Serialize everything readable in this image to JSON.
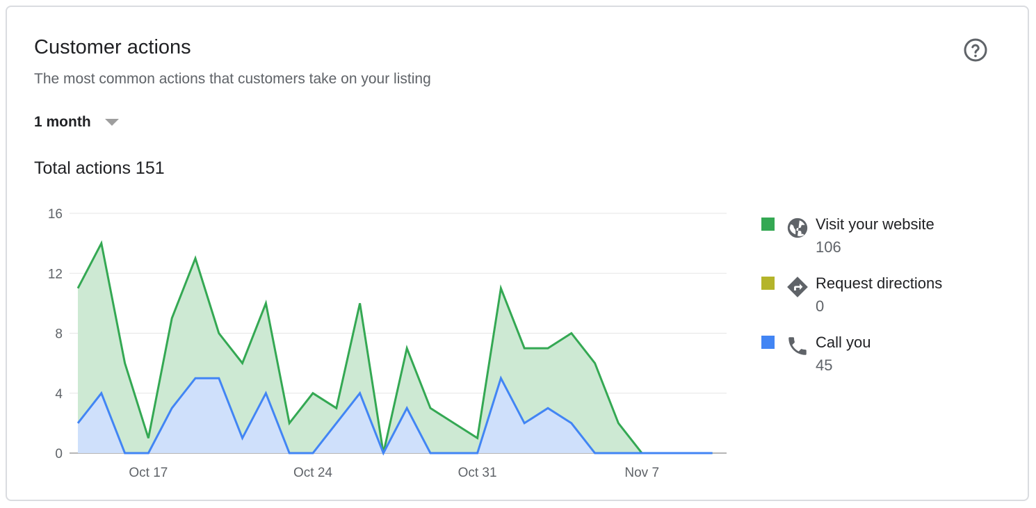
{
  "card": {
    "title": "Customer actions",
    "subtitle": "The most common actions that customers take on your listing",
    "help_icon": "help-circle-icon",
    "period": {
      "selected": "1 month",
      "icon": "caret-down-icon"
    },
    "total_label": "Total actions 151"
  },
  "colors": {
    "website": "#34a853",
    "website_fill": "#cde9d3",
    "directions": "#b4b42a",
    "call": "#4285f4",
    "call_fill": "#cfe0fb",
    "grid": "#e6e6e6",
    "axis": "#9e9e9e"
  },
  "legend": [
    {
      "label": "Visit your website",
      "value": "106",
      "icon": "globe-icon",
      "color_key": "website"
    },
    {
      "label": "Request directions",
      "value": "0",
      "icon": "directions-icon",
      "color_key": "directions"
    },
    {
      "label": "Call you",
      "value": "45",
      "icon": "phone-icon",
      "color_key": "call"
    }
  ],
  "chart_data": {
    "type": "area",
    "x_tick_labels": [
      "Oct 17",
      "Oct 24",
      "Oct 31",
      "Nov 7"
    ],
    "x_tick_days": [
      3,
      10,
      17,
      24
    ],
    "days": [
      0,
      1,
      2,
      3,
      4,
      5,
      6,
      7,
      8,
      9,
      10,
      11,
      12,
      13,
      14,
      15,
      16,
      17,
      18,
      19,
      20,
      21,
      22,
      23,
      24,
      25,
      26,
      27
    ],
    "ylim": [
      0,
      16
    ],
    "y_ticks": [
      0,
      4,
      8,
      12,
      16
    ],
    "grid": true,
    "legend_position": "right",
    "stacked": true,
    "series": [
      {
        "name": "Call you",
        "values": [
          2,
          4,
          0,
          0,
          3,
          5,
          5,
          1,
          4,
          0,
          0,
          2,
          4,
          0,
          3,
          0,
          0,
          0,
          5,
          2,
          3,
          2,
          0,
          0,
          0,
          0,
          0,
          0
        ]
      },
      {
        "name": "Visit your website",
        "values": [
          9,
          10,
          6,
          1,
          6,
          8,
          3,
          5,
          6,
          2,
          4,
          1,
          6,
          0,
          4,
          3,
          2,
          1,
          6,
          5,
          4,
          6,
          6,
          2,
          0,
          0,
          0,
          0
        ]
      }
    ]
  }
}
